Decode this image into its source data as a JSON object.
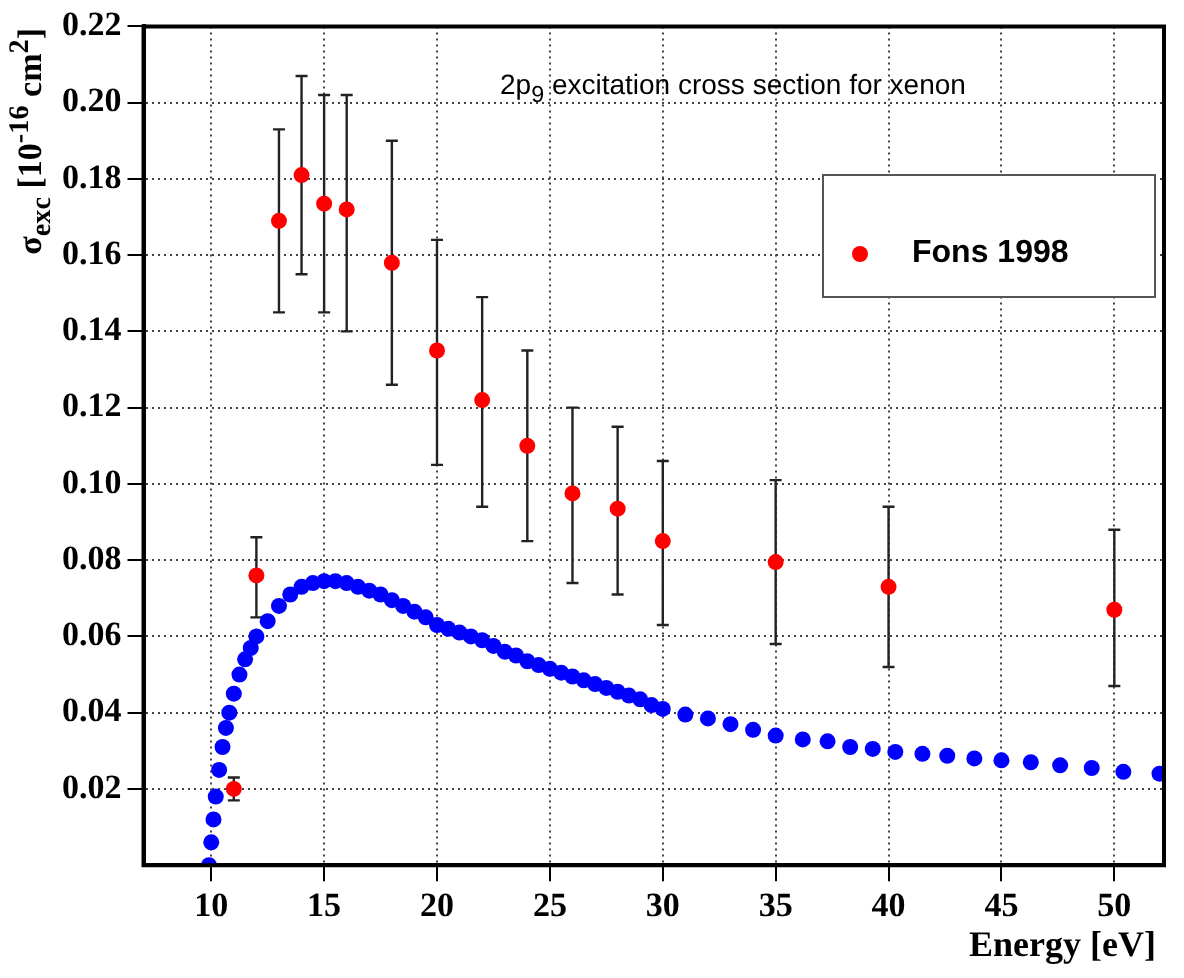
{
  "chart_data": {
    "type": "scatter",
    "title": "2p$_{9}$ excitation cross section for xenon",
    "xlabel": "Energy [eV]",
    "ylabel": "σ$_{exc}$ [10$^{-16}$ cm$^{2}$]",
    "xlim": [
      7,
      52.2
    ],
    "ylim": [
      0,
      0.22
    ],
    "xticks": [
      10,
      15,
      20,
      25,
      30,
      35,
      40,
      45,
      50
    ],
    "yticks": [
      0.02,
      0.04,
      0.06,
      0.08,
      {
        "value": 0.1,
        "label": "0.10"
      },
      0.12,
      0.14,
      0.16,
      0.18,
      {
        "value": 0.2,
        "label": "0.20"
      },
      0.22
    ],
    "grid": true,
    "legend": "top right",
    "marker": "circle",
    "series": [
      {
        "name": "Fons 1998",
        "color": "#ff0000",
        "x": [
          11,
          12,
          13,
          14,
          15,
          16,
          18,
          20,
          22,
          24,
          26,
          28,
          30,
          35,
          40,
          50
        ],
        "values": [
          0.02,
          0.076,
          0.169,
          0.181,
          0.1735,
          0.172,
          0.158,
          0.135,
          0.122,
          0.11,
          0.0975,
          0.0935,
          0.085,
          0.0795,
          0.073,
          0.067
        ],
        "errors": [
          [
            0.017,
            0.023
          ],
          [
            0.065,
            0.086
          ],
          [
            0.145,
            0.193
          ],
          [
            0.155,
            0.207
          ],
          [
            0.145,
            0.202
          ],
          [
            0.14,
            0.202
          ],
          [
            0.126,
            0.19
          ],
          [
            0.105,
            0.164
          ],
          [
            0.094,
            0.149
          ],
          [
            0.085,
            0.135
          ],
          [
            0.074,
            0.12
          ],
          [
            0.071,
            0.115
          ],
          [
            0.063,
            0.106
          ],
          [
            0.058,
            0.101
          ],
          [
            0.052,
            0.094
          ],
          [
            0.047,
            0.088
          ]
        ]
      },
      {
        "color": "#0000ff",
        "x": [
          9.9,
          10,
          10.1,
          10.2,
          10.35,
          10.5,
          10.65,
          10.8,
          11,
          11.25,
          11.5,
          11.75,
          12,
          12.5,
          13,
          13.5,
          14,
          14.5,
          15,
          15.5,
          16,
          16.5,
          17,
          17.5,
          18,
          18.5,
          19,
          19.5,
          20,
          20.5,
          21,
          21.5,
          22,
          22.5,
          23,
          23.5,
          24,
          24.5,
          25,
          25.5,
          26,
          26.5,
          27,
          27.5,
          28,
          28.5,
          29,
          29.5,
          30,
          31,
          32,
          33,
          34,
          35,
          36.2,
          37.3,
          38.3,
          39.3,
          40.3,
          41.5,
          42.6,
          43.8,
          45,
          46.3,
          47.6,
          49,
          50.4,
          52
        ],
        "values": [
          0.0,
          0.006,
          0.012,
          0.018,
          0.025,
          0.031,
          0.036,
          0.04,
          0.045,
          0.05,
          0.054,
          0.057,
          0.06,
          0.064,
          0.068,
          0.071,
          0.073,
          0.074,
          0.0745,
          0.0745,
          0.074,
          0.073,
          0.072,
          0.071,
          0.0695,
          0.068,
          0.0665,
          0.065,
          0.063,
          0.062,
          0.061,
          0.06,
          0.059,
          0.0575,
          0.056,
          0.055,
          0.0535,
          0.0525,
          0.0515,
          0.0505,
          0.0495,
          0.0485,
          0.0475,
          0.0465,
          0.0455,
          0.0445,
          0.0435,
          0.042,
          0.041,
          0.0395,
          0.0385,
          0.037,
          0.0355,
          0.034,
          0.033,
          0.0325,
          0.031,
          0.0305,
          0.0297,
          0.0292,
          0.0287,
          0.028,
          0.0275,
          0.027,
          0.0262,
          0.0255,
          0.0245,
          0.024
        ]
      }
    ]
  }
}
